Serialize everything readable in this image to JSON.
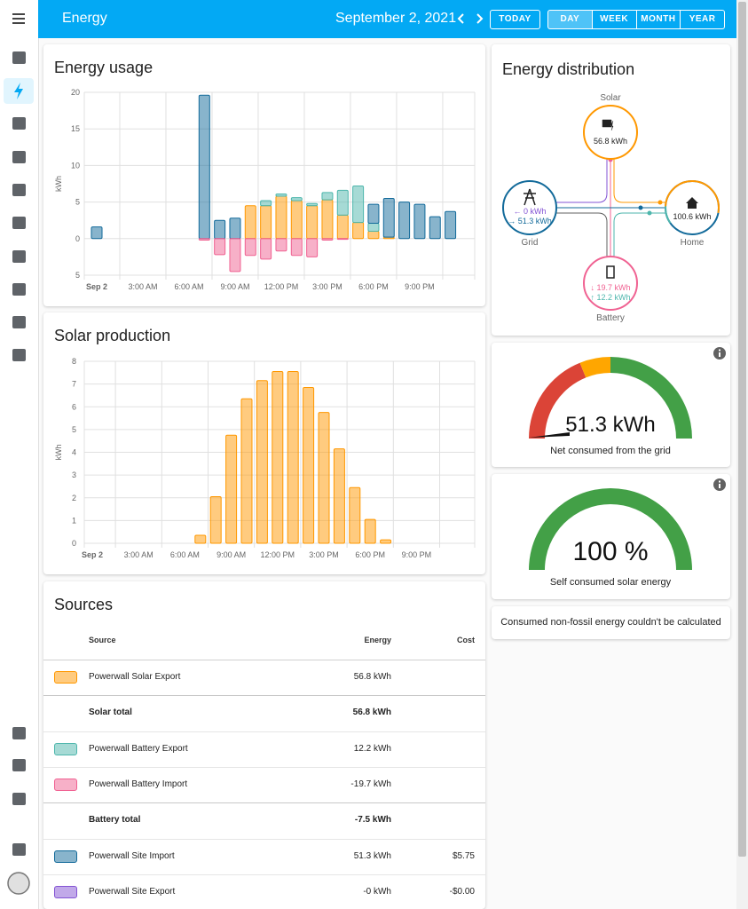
{
  "header": {
    "title": "Energy",
    "date": "September 2, 2021",
    "today": "TODAY",
    "periods": [
      "DAY",
      "WEEK",
      "MONTH",
      "YEAR"
    ],
    "active_period": "DAY"
  },
  "chart_data": [
    {
      "type": "bar",
      "title": "Energy usage",
      "y_label": "kWh",
      "stacked": true,
      "grid": true,
      "categories": [
        "Sep 2",
        null,
        null,
        "3:00 AM",
        null,
        null,
        "6:00 AM",
        null,
        null,
        "9:00 AM",
        null,
        null,
        "12:00 PM",
        null,
        null,
        "3:00 PM",
        null,
        null,
        "6:00 PM",
        null,
        null,
        "9:00 PM",
        null,
        null
      ],
      "ylim": [
        -5,
        20
      ],
      "yticks": [
        {
          "value": -5,
          "label": "5"
        },
        0,
        5,
        10,
        15,
        20
      ],
      "series": [
        {
          "color": "#ff9800",
          "values": [
            null,
            null,
            null,
            null,
            null,
            null,
            null,
            null,
            null,
            null,
            4.5,
            4.5,
            5.8,
            5.2,
            4.5,
            5.3,
            3.2,
            2.2,
            1.0,
            0.2,
            null,
            null,
            null,
            null
          ]
        },
        {
          "color": "#4db6ac",
          "values": [
            null,
            null,
            null,
            null,
            null,
            null,
            null,
            null,
            null,
            null,
            null,
            0.7,
            0.3,
            0.4,
            0.3,
            1.0,
            3.4,
            5.0,
            1.1,
            null,
            null,
            null,
            null,
            null
          ]
        },
        {
          "color": "#126a9a",
          "values": [
            1.6,
            null,
            null,
            null,
            null,
            null,
            null,
            19.6,
            2.5,
            2.8,
            null,
            null,
            null,
            null,
            null,
            null,
            null,
            null,
            2.6,
            5.3,
            5.0,
            4.7,
            3.0,
            3.7
          ]
        },
        {
          "color": "#f06292",
          "values": [
            null,
            null,
            null,
            null,
            null,
            null,
            null,
            -0.2,
            -2.2,
            -4.5,
            -2.3,
            -2.8,
            -1.7,
            -2.3,
            -2.5,
            -0.2,
            -0.1,
            null,
            null,
            null,
            null,
            null,
            null,
            null
          ]
        }
      ]
    },
    {
      "type": "bar",
      "title": "Solar production",
      "y_label": "kWh",
      "stacked": true,
      "grid": true,
      "categories": [
        "Sep 2",
        null,
        null,
        "3:00 AM",
        null,
        null,
        "6:00 AM",
        null,
        null,
        "9:00 AM",
        null,
        null,
        "12:00 PM",
        null,
        null,
        "3:00 PM",
        null,
        null,
        "6:00 PM",
        null,
        null,
        "9:00 PM",
        null,
        null
      ],
      "ylim": [
        0,
        8
      ],
      "yticks": [
        0,
        1,
        2,
        3,
        4,
        5,
        6,
        7,
        8
      ],
      "series": [
        {
          "color": "#ff9800",
          "values": [
            null,
            null,
            null,
            null,
            null,
            null,
            null,
            0.35,
            2.05,
            4.75,
            6.35,
            7.15,
            7.55,
            7.55,
            6.85,
            5.75,
            4.15,
            2.45,
            1.05,
            0.15,
            null,
            null,
            null,
            null
          ]
        }
      ]
    }
  ],
  "energy_distribution": {
    "title": "Energy distribution",
    "solar": {
      "label": "Solar",
      "value": "56.8 kWh"
    },
    "grid": {
      "label": "Grid",
      "lines": [
        "← 0 kWh",
        "→ 51.3 kWh"
      ]
    },
    "home": {
      "label": "Home",
      "value": "100.6 kWh"
    },
    "battery": {
      "label": "Battery",
      "lines": [
        "↓ 19.7 kWh",
        "↑ 12.2 kWh"
      ]
    }
  },
  "gauges": [
    {
      "value_label": "51.3 kWh",
      "label": "Net consumed from the grid"
    },
    {
      "value_label": "100 %",
      "label": "Self consumed solar energy"
    }
  ],
  "non_fossil_note": "Consumed non-fossil energy couldn't be calculated",
  "sources": {
    "title": "Sources",
    "columns": [
      "Source",
      "Energy",
      "Cost"
    ],
    "rows": [
      {
        "color": "#ff9800",
        "source": "Powerwall Solar Export",
        "energy": "56.8 kWh"
      },
      {
        "source": "Solar total",
        "energy": "56.8 kWh",
        "total": true
      },
      {
        "color": "#4db6ac",
        "source": "Powerwall Battery Export",
        "energy": "12.2 kWh"
      },
      {
        "color": "#f06292",
        "source": "Powerwall Battery Import",
        "energy": "-19.7 kWh"
      },
      {
        "source": "Battery total",
        "energy": "-7.5 kWh",
        "total": true
      },
      {
        "color": "#126a9a",
        "source": "Powerwall Site Import",
        "energy": "51.3 kWh",
        "cost": "$5.75"
      },
      {
        "color": "#8353d4",
        "source": "Powerwall Site Export",
        "energy": "-0 kWh",
        "cost": "-$0.00"
      }
    ]
  }
}
